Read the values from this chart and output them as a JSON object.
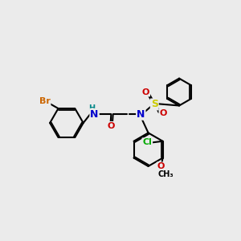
{
  "bg_color": "#ebebeb",
  "atom_colors": {
    "Br": "#cc6600",
    "N": "#0000cc",
    "O": "#cc0000",
    "S": "#cccc00",
    "Cl": "#00aa00",
    "H": "#008888",
    "C": "#000000"
  }
}
